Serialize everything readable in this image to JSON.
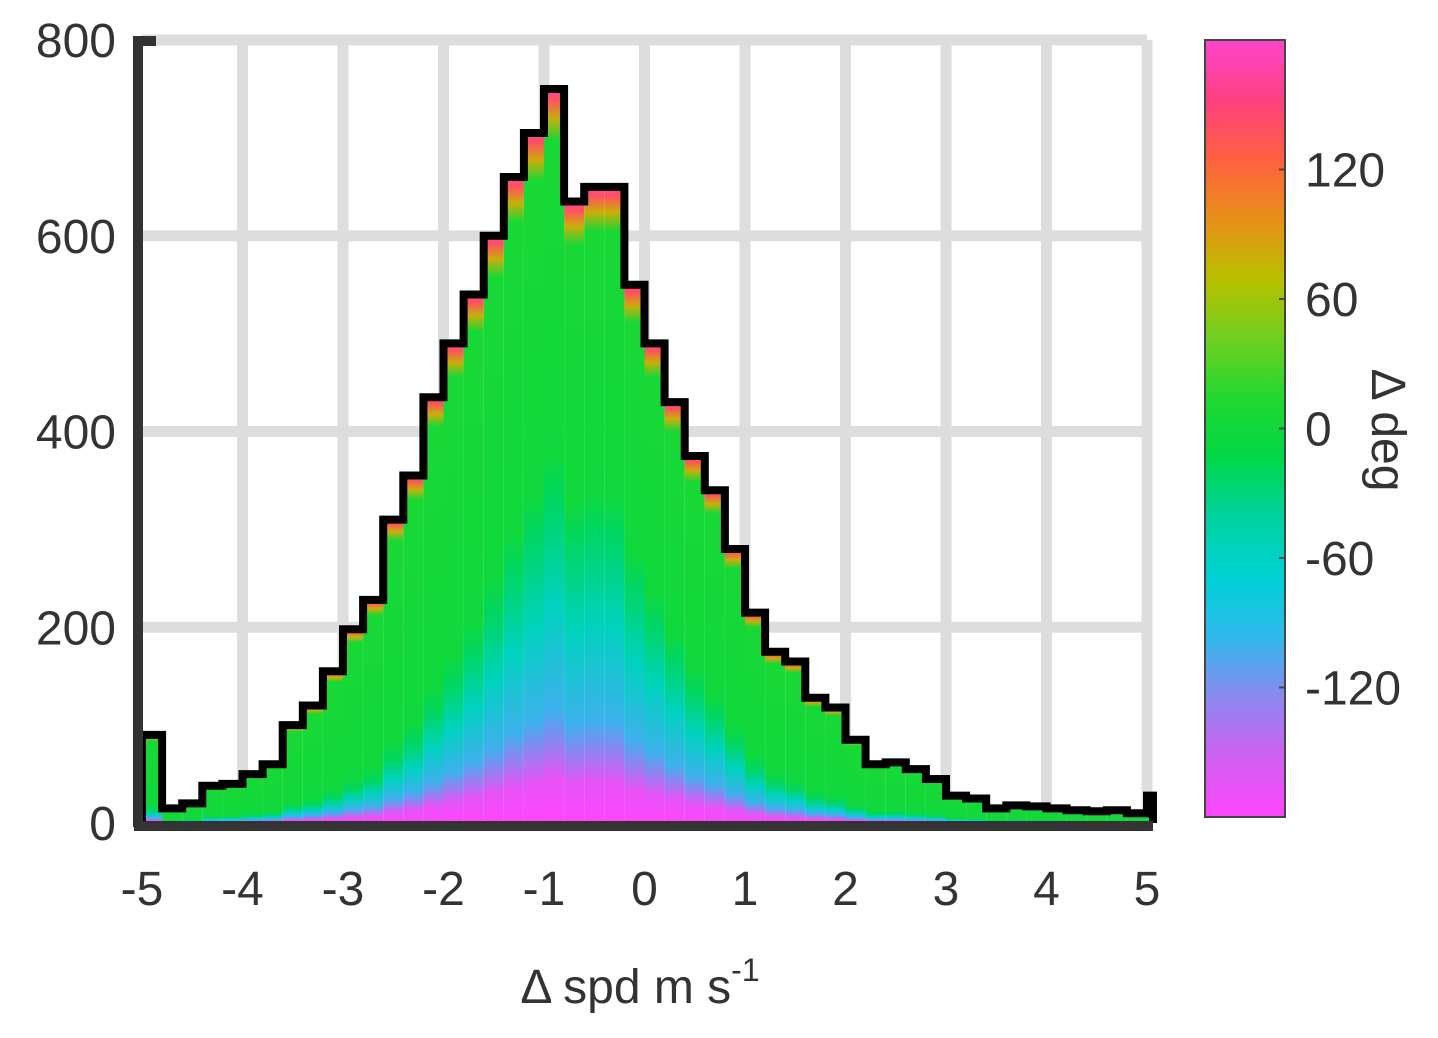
{
  "chart_data": {
    "type": "bar",
    "subtype": "stacked-histogram",
    "xlabel": "Δ spd m s",
    "xlabel_superscript": "-1",
    "ylabel": "",
    "xlim": [
      -5,
      5
    ],
    "ylim": [
      0,
      800
    ],
    "xticks": [
      -5,
      -4,
      -3,
      -2,
      -1,
      0,
      1,
      2,
      3,
      4,
      5
    ],
    "yticks": [
      0,
      200,
      400,
      600,
      800
    ],
    "grid": true,
    "bin_width": 0.2,
    "bin_edges_start": -5,
    "counts": [
      90,
      15,
      20,
      38,
      40,
      50,
      60,
      100,
      120,
      155,
      198,
      228,
      310,
      355,
      435,
      490,
      540,
      600,
      660,
      705,
      750,
      635,
      650,
      650,
      550,
      490,
      430,
      375,
      340,
      280,
      215,
      175,
      165,
      128,
      118,
      85,
      60,
      62,
      55,
      45,
      28,
      25,
      15,
      18,
      17,
      15,
      13,
      12,
      13,
      10,
      28
    ],
    "colorbar": {
      "label": "Δ deg",
      "range": [
        -180,
        180
      ],
      "ticks": [
        -120,
        -60,
        0,
        60,
        120
      ],
      "colors": [
        "#ff44ff",
        "#d060f0",
        "#8c88f0",
        "#30b8ec",
        "#00d2d6",
        "#00d2a0",
        "#00d848",
        "#20d830",
        "#70d020",
        "#b8c000",
        "#e89018",
        "#ff6040",
        "#ff4080",
        "#ff44cc"
      ]
    },
    "outline_color": "#000000",
    "grid_color": "#dddddd"
  }
}
